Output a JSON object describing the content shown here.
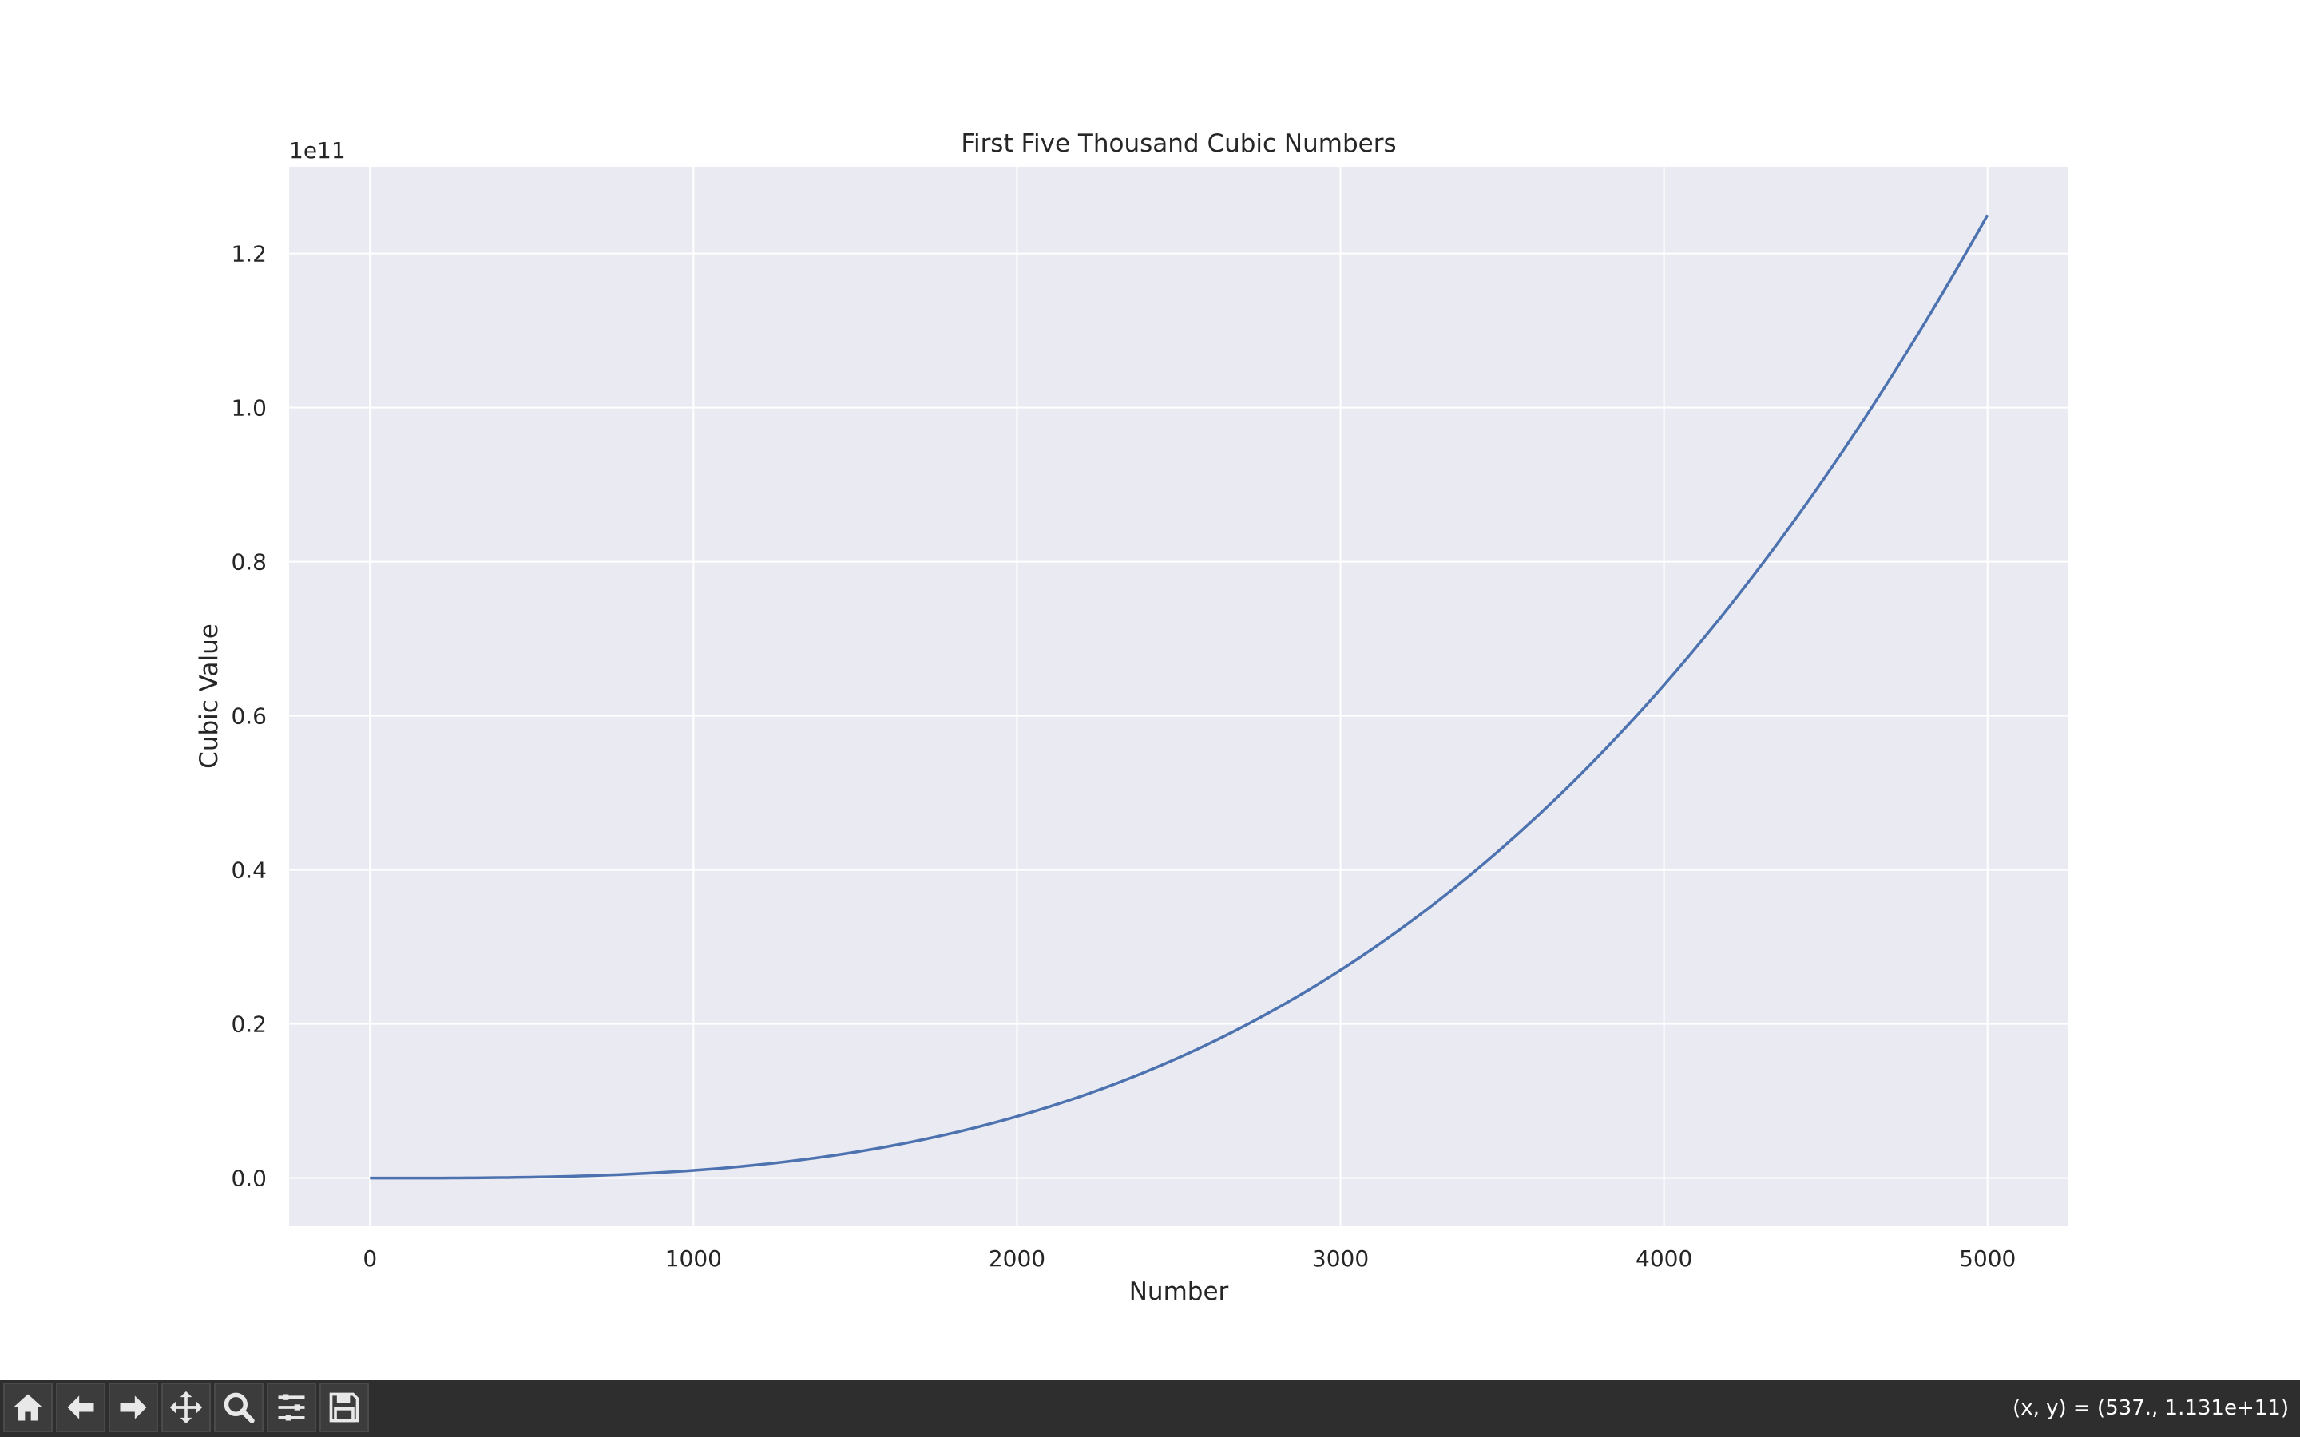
{
  "chart_data": {
    "type": "line",
    "title": "First Five Thousand Cubic Numbers",
    "xlabel": "Number",
    "ylabel": "Cubic Value",
    "y_offset_label": "1e11",
    "xlim": [
      -250,
      5250
    ],
    "ylim": [
      -6250000000,
      131250000000
    ],
    "x_ticks": [
      0,
      1000,
      2000,
      3000,
      4000,
      5000
    ],
    "x_tick_labels": [
      "0",
      "1000",
      "2000",
      "3000",
      "4000",
      "5000"
    ],
    "y_ticks": [
      0,
      20000000000,
      40000000000,
      60000000000,
      80000000000,
      100000000000,
      120000000000
    ],
    "y_tick_labels": [
      "0.0",
      "0.2",
      "0.4",
      "0.6",
      "0.8",
      "1.0",
      "1.2"
    ],
    "grid": true,
    "background": "#eaeaf2",
    "grid_color": "#ffffff",
    "series": [
      {
        "function": "cube",
        "color": "#4c72b0",
        "x": [
          0,
          250,
          500,
          750,
          1000,
          1250,
          1500,
          1750,
          2000,
          2250,
          2500,
          2750,
          3000,
          3250,
          3500,
          3750,
          4000,
          4250,
          4500,
          4750,
          5000
        ],
        "values": [
          0,
          15625000,
          125000000,
          421875000,
          1000000000,
          1953125000,
          3375000000,
          5359375000,
          8000000000,
          11390625000,
          15625000000,
          20796875000,
          27000000000,
          34328125000,
          42875000000,
          52734375000,
          64000000000,
          76765625000,
          91125000000,
          107171875000,
          125000000000
        ]
      }
    ]
  },
  "toolbar": {
    "buttons": [
      {
        "name": "home-button",
        "icon": "home-icon"
      },
      {
        "name": "back-button",
        "icon": "arrow-left-icon"
      },
      {
        "name": "forward-button",
        "icon": "arrow-right-icon"
      },
      {
        "name": "pan-button",
        "icon": "move-icon"
      },
      {
        "name": "zoom-button",
        "icon": "magnifier-icon"
      },
      {
        "name": "configure-subplots-button",
        "icon": "sliders-icon"
      },
      {
        "name": "save-button",
        "icon": "floppy-disk-icon"
      }
    ],
    "coord_readout": "(x, y) = (537., 1.131e+11)"
  }
}
